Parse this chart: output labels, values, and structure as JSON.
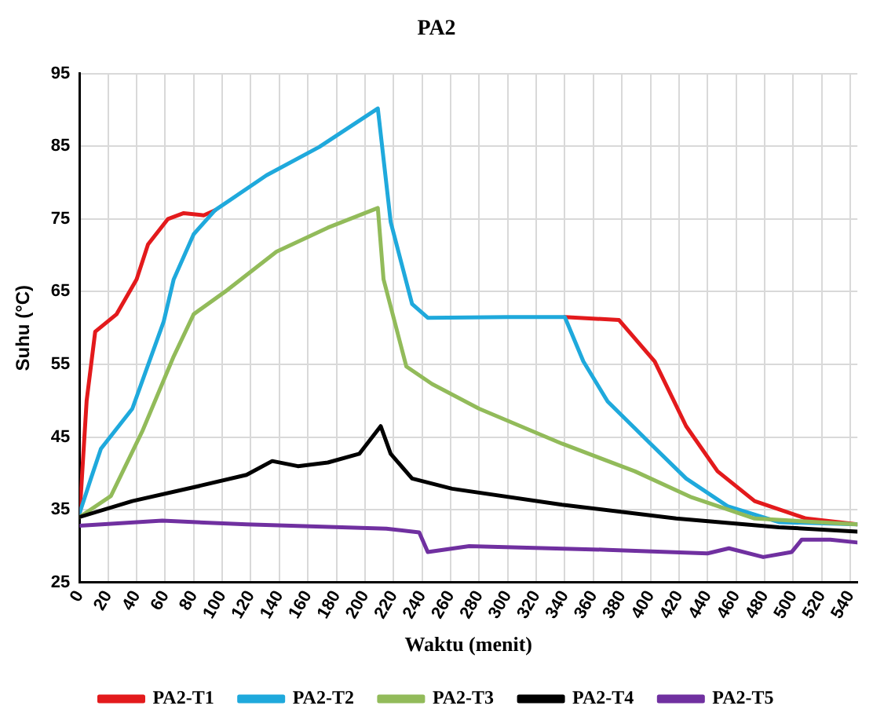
{
  "chart_data": {
    "type": "line",
    "title": "PA2",
    "xlabel": "Waktu (menit)",
    "ylabel": "Suhu (°C)",
    "xlim": [
      0,
      545
    ],
    "xticks": [
      0,
      20,
      40,
      60,
      80,
      100,
      120,
      140,
      160,
      180,
      200,
      220,
      240,
      260,
      280,
      300,
      320,
      340,
      360,
      380,
      400,
      420,
      440,
      460,
      480,
      500,
      520,
      540
    ],
    "ylim": [
      25,
      95
    ],
    "yticks": [
      25,
      35,
      45,
      55,
      65,
      75,
      85,
      95
    ],
    "grid": true,
    "legend": "bottom",
    "marker": "none",
    "line_style": "solid",
    "series": [
      {
        "name": "PA2-T1",
        "color": "#e31a1c",
        "x": [
          0,
          5,
          11,
          26,
          40,
          48,
          62,
          73,
          87,
          95,
          131,
          168,
          209,
          218,
          233,
          244,
          300,
          340,
          378,
          403,
          425,
          447,
          473,
          509,
          545
        ],
        "values": [
          34,
          50,
          59.5,
          61.9,
          66.7,
          71.5,
          75,
          75.8,
          75.5,
          76.2,
          null,
          null,
          null,
          null,
          null,
          null,
          null,
          61.5,
          61.1,
          55.4,
          46.5,
          40.3,
          36.2,
          33.8,
          33
        ]
      },
      {
        "name": "PA2-T2",
        "color": "#1fa9dc",
        "x": [
          0,
          8,
          15,
          37,
          59,
          66,
          80,
          95,
          131,
          168,
          209,
          218,
          233,
          244,
          300,
          340,
          353,
          370,
          400,
          425,
          454,
          490,
          545
        ],
        "values": [
          34.5,
          39.3,
          43.4,
          48.9,
          60.9,
          66.7,
          72.9,
          76.2,
          81,
          84.9,
          90.2,
          74.6,
          63.3,
          61.4,
          61.5,
          61.5,
          55.4,
          49.9,
          44.1,
          39.3,
          35.5,
          33.3,
          33
        ]
      },
      {
        "name": "PA2-T3",
        "color": "#92bb5a",
        "x": [
          0,
          22,
          44,
          66,
          80,
          102,
          138,
          174,
          209,
          213,
          229,
          247,
          280,
          338,
          389,
          429,
          473,
          545
        ],
        "values": [
          34,
          36.9,
          45.8,
          56.1,
          61.9,
          65,
          70.5,
          73.8,
          76.5,
          66.7,
          54.7,
          52.3,
          48.9,
          44.1,
          40.3,
          36.7,
          33.8,
          33
        ]
      },
      {
        "name": "PA2-T4",
        "color": "#000000",
        "x": [
          0,
          37,
          80,
          117,
          135,
          153,
          174,
          196,
          211,
          218,
          233,
          261,
          338,
          418,
          490,
          545
        ],
        "values": [
          34,
          36.2,
          38.1,
          39.8,
          41.7,
          41,
          41.5,
          42.7,
          46.5,
          42.7,
          39.3,
          37.9,
          35.7,
          33.8,
          32.6,
          32
        ]
      },
      {
        "name": "PA2-T5",
        "color": "#7030a0",
        "x": [
          0,
          58,
          117,
          215,
          238,
          244,
          273,
          370,
          440,
          455,
          479,
          499,
          506,
          526,
          545
        ],
        "values": [
          32.8,
          33.5,
          33,
          32.4,
          31.9,
          29.2,
          30,
          29.5,
          29,
          29.7,
          28.5,
          29.2,
          30.9,
          30.9,
          30.5
        ]
      }
    ]
  }
}
